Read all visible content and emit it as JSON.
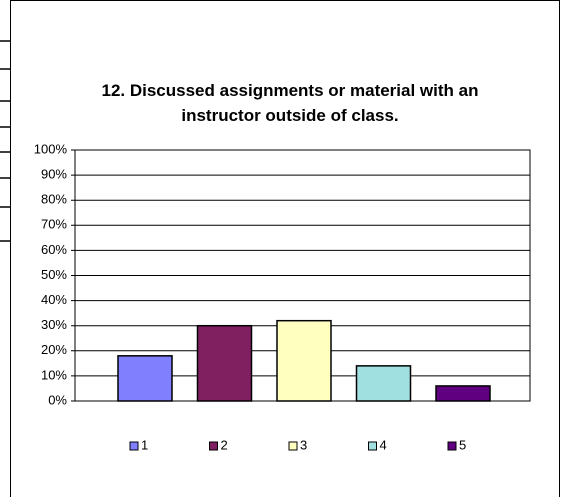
{
  "chart_data": {
    "type": "bar",
    "title": "12. Discussed assignments or material with an instructor outside of class.",
    "categories": [
      "1",
      "2",
      "3",
      "4",
      "5"
    ],
    "values": [
      18,
      30,
      32,
      14,
      6
    ],
    "colors": [
      "#8080ff",
      "#802060",
      "#ffffc0",
      "#a0e0e0",
      "#600080"
    ],
    "ylim": [
      0,
      100
    ],
    "yticks": [
      {
        "value": 0,
        "label": "0%"
      },
      {
        "value": 10,
        "label": "10%"
      },
      {
        "value": 20,
        "label": "20%"
      },
      {
        "value": 30,
        "label": "30%"
      },
      {
        "value": 40,
        "label": "40%"
      },
      {
        "value": 50,
        "label": "50%"
      },
      {
        "value": 60,
        "label": "60%"
      },
      {
        "value": 70,
        "label": "70%"
      },
      {
        "value": 80,
        "label": "80%"
      },
      {
        "value": 90,
        "label": "90%"
      },
      {
        "value": 100,
        "label": "100%"
      }
    ],
    "grid": true,
    "legend": "bottom"
  }
}
